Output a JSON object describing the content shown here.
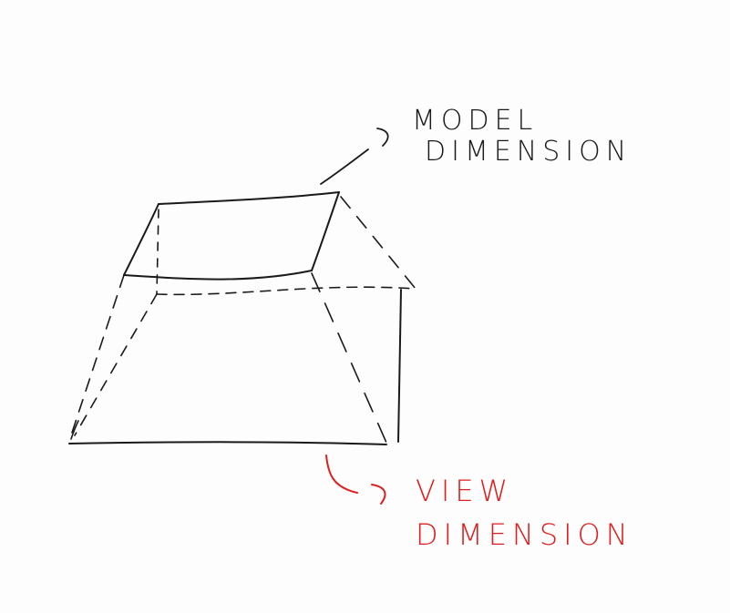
{
  "annotations": {
    "model": {
      "line1": "MODEL",
      "line2": "DIMENSION",
      "color": "#1a1a1a"
    },
    "view": {
      "line1": "VIEW",
      "line2": "DIMENSION",
      "color": "#e01e1e"
    }
  },
  "colors": {
    "background": "#fdfdfd",
    "ink": "#1a1a1a",
    "accent": "#e01e1e"
  }
}
